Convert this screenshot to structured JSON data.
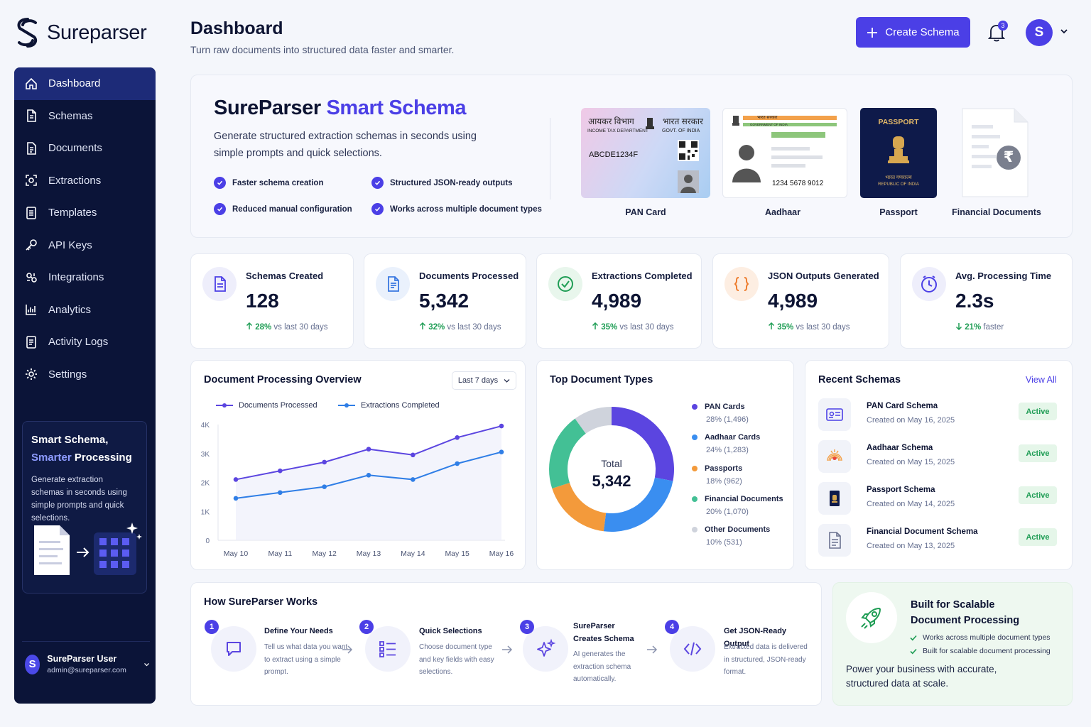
{
  "app": {
    "name": "Sureparser"
  },
  "sidebar": {
    "items": [
      {
        "label": "Dashboard",
        "icon": "home-icon",
        "active": true
      },
      {
        "label": "Schemas",
        "icon": "file-icon"
      },
      {
        "label": "Documents",
        "icon": "document-icon"
      },
      {
        "label": "Extractions",
        "icon": "scan-icon"
      },
      {
        "label": "Templates",
        "icon": "template-icon"
      },
      {
        "label": "API Keys",
        "icon": "key-icon"
      },
      {
        "label": "Integrations",
        "icon": "integrations-icon"
      },
      {
        "label": "Analytics",
        "icon": "analytics-icon"
      },
      {
        "label": "Activity Logs",
        "icon": "log-icon"
      },
      {
        "label": "Settings",
        "icon": "gear-icon"
      }
    ],
    "promo": {
      "title_1": "Smart Schema,",
      "title_hl": "Smarter",
      "title_2": " Processing",
      "desc": "Generate extraction schemas in seconds using simple prompts and quick selections."
    },
    "user": {
      "initial": "S",
      "name": "SureParser User",
      "email": "admin@sureparser.com"
    }
  },
  "header": {
    "title": "Dashboard",
    "subtitle": "Turn raw documents into structured data faster and smarter.",
    "create_label": "Create Schema",
    "notifications": "3",
    "avatar_initial": "S"
  },
  "hero": {
    "title_1": "SureParser ",
    "title_accent": "Smart Schema",
    "desc": "Generate structured extraction schemas in seconds using simple prompts and quick selections.",
    "features": [
      "Faster schema creation",
      "Structured JSON-ready outputs",
      "Reduced manual configuration",
      "Works across multiple document types"
    ],
    "docs": {
      "pan": {
        "label": "PAN Card",
        "dept_hi": "आयकर विभाग",
        "dept_en": "INCOME TAX DEPARTMENT",
        "govt_hi": "भारत सरकार",
        "govt_en": "GOVT. OF INDIA",
        "number": "ABCDE1234F"
      },
      "aadhaar": {
        "label": "Aadhaar",
        "govt_hi": "भारत सरकार",
        "govt_en": "GOVERNMENT OF INDIA",
        "number": "1234 5678 9012"
      },
      "passport": {
        "label": "Passport",
        "title": "PASSPORT",
        "hi": "भारत गणराज्य",
        "en": "REPUBLIC OF INDIA"
      },
      "financial": {
        "label": "Financial Documents",
        "symbol": "₹"
      }
    }
  },
  "stats": [
    {
      "label": "Schemas Created",
      "value": "128",
      "delta": "28%",
      "delta_text": " vs last 30 days",
      "dir": "up",
      "icon": "schema-file-icon",
      "bg": "#eeeefb",
      "color": "#4b3fe6"
    },
    {
      "label": "Documents Processed",
      "value": "5,342",
      "delta": "32%",
      "delta_text": " vs last 30 days",
      "dir": "up",
      "icon": "document-icon",
      "bg": "#eaf1fc",
      "color": "#3a78e0"
    },
    {
      "label": "Extractions Completed",
      "value": "4,989",
      "delta": "35%",
      "delta_text": " vs last 30 days",
      "dir": "up",
      "icon": "check-circle-icon",
      "bg": "#e8f6ec",
      "color": "#1f9d55"
    },
    {
      "label": "JSON Outputs Generated",
      "value": "4,989",
      "delta": "35%",
      "delta_text": " vs last 30 days",
      "dir": "up",
      "icon": "json-braces-icon",
      "bg": "#fdeee2",
      "color": "#ee7d2e"
    },
    {
      "label": "Avg. Processing Time",
      "value": "2.3s",
      "delta": "21%",
      "delta_text": " faster",
      "dir": "down",
      "icon": "clock-icon",
      "bg": "#eeeefb",
      "color": "#4b3fe6"
    }
  ],
  "overview": {
    "title": "Document Processing Overview",
    "period": "Last 7 days"
  },
  "types": {
    "title": "Top Document Types",
    "total_label": "Total",
    "total_value": "5,342"
  },
  "recent": {
    "title": "Recent Schemas",
    "view_all": "View All",
    "items": [
      {
        "name": "PAN Card Schema",
        "date": "Created on May 16, 2025",
        "status": "Active",
        "icon": "id-card-icon"
      },
      {
        "name": "Aadhaar Schema",
        "date": "Created on May 15, 2025",
        "status": "Active",
        "icon": "aadhaar-logo-icon"
      },
      {
        "name": "Passport Schema",
        "date": "Created on May 14, 2025",
        "status": "Active",
        "icon": "passport-icon"
      },
      {
        "name": "Financial Document Schema",
        "date": "Created on May 13, 2025",
        "status": "Active",
        "icon": "file-icon"
      }
    ]
  },
  "how": {
    "title": "How SureParser Works",
    "steps": [
      {
        "num": "1",
        "title": "Define Your Needs",
        "desc": "Tell us what data you want to extract using a simple prompt.",
        "icon": "chat-icon"
      },
      {
        "num": "2",
        "title": "Quick Selections",
        "desc": "Choose document type and key fields with easy selections.",
        "icon": "checklist-icon"
      },
      {
        "num": "3",
        "title": "SureParser Creates Schema",
        "desc": "AI generates the extraction schema automatically.",
        "icon": "sparkle-icon"
      },
      {
        "num": "4",
        "title": "Get JSON-Ready Output",
        "desc": "Extracted data is delivered in structured, JSON-ready format.",
        "icon": "code-icon"
      }
    ]
  },
  "scale": {
    "title": "Built for Scalable Document Processing",
    "items": [
      "Works across multiple document types",
      "Built for scalable document processing"
    ],
    "bottom": "Power your business with accurate, structured data at scale."
  },
  "chart_data": [
    {
      "type": "line",
      "title": "Document Processing Overview",
      "categories": [
        "May 10",
        "May 11",
        "May 12",
        "May 13",
        "May 14",
        "May 15",
        "May 16"
      ],
      "yticks": [
        "0",
        "1K",
        "2K",
        "3K",
        "4K"
      ],
      "ylim": [
        0,
        4000
      ],
      "grid": false,
      "legend": "top-left",
      "series": [
        {
          "name": "Documents Processed",
          "color": "#5b45e0",
          "values": [
            2100,
            2400,
            2700,
            3150,
            2950,
            3550,
            3950
          ]
        },
        {
          "name": "Extractions Completed",
          "color": "#2f7ee6",
          "values": [
            1450,
            1650,
            1850,
            2250,
            2100,
            2650,
            3050
          ]
        }
      ]
    },
    {
      "type": "pie",
      "title": "Top Document Types",
      "slices": [
        {
          "name": "PAN Cards",
          "pct": "28%",
          "count": "(1,496)",
          "value": 1496,
          "color": "#5b45e0"
        },
        {
          "name": "Aadhaar Cards",
          "pct": "24%",
          "count": "(1,283)",
          "value": 1283,
          "color": "#3a8ef0"
        },
        {
          "name": "Passports",
          "pct": "18%",
          "count": "(962)",
          "value": 962,
          "color": "#f39a3b"
        },
        {
          "name": "Financial Documents",
          "pct": "20%",
          "count": "(1,070)",
          "value": 1070,
          "color": "#43c095"
        },
        {
          "name": "Other Documents",
          "pct": "10%",
          "count": "(531)",
          "value": 531,
          "color": "#cfd3dc"
        }
      ]
    }
  ]
}
